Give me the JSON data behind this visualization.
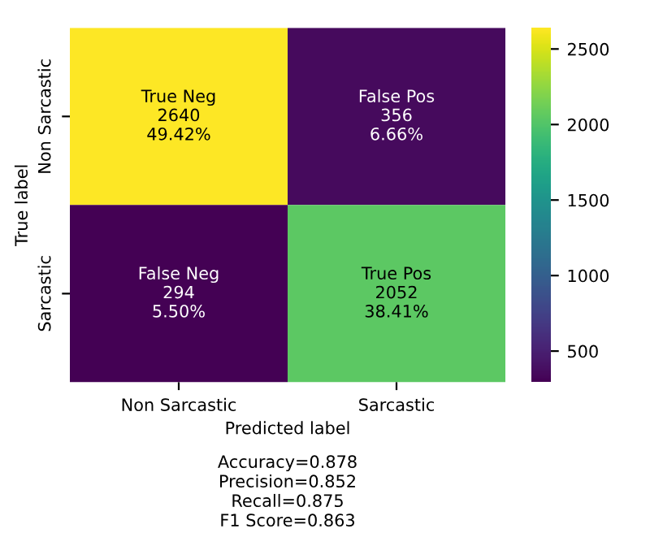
{
  "chart_data": {
    "type": "heatmap",
    "xlabel": "Predicted label",
    "ylabel": "True label",
    "categories": [
      "Non Sarcastic",
      "Sarcastic"
    ],
    "y_categories": [
      "Non Sarcastic",
      "Sarcastic"
    ],
    "cells": [
      [
        2640,
        356
      ],
      [
        294,
        2052
      ]
    ],
    "cell_labels": [
      [
        "True Neg\n2640\n49.42%",
        "False Pos\n356\n6.66%"
      ],
      [
        "False Neg\n294\n5.50%",
        "True Pos\n2052\n38.41%"
      ]
    ],
    "clim": [
      294,
      2640
    ],
    "cticks": [
      500,
      1000,
      1500,
      2000,
      2500
    ],
    "annotations": [
      "Accuracy=0.878",
      "Precision=0.852",
      "Recall=0.875",
      "F1 Score=0.863"
    ]
  }
}
